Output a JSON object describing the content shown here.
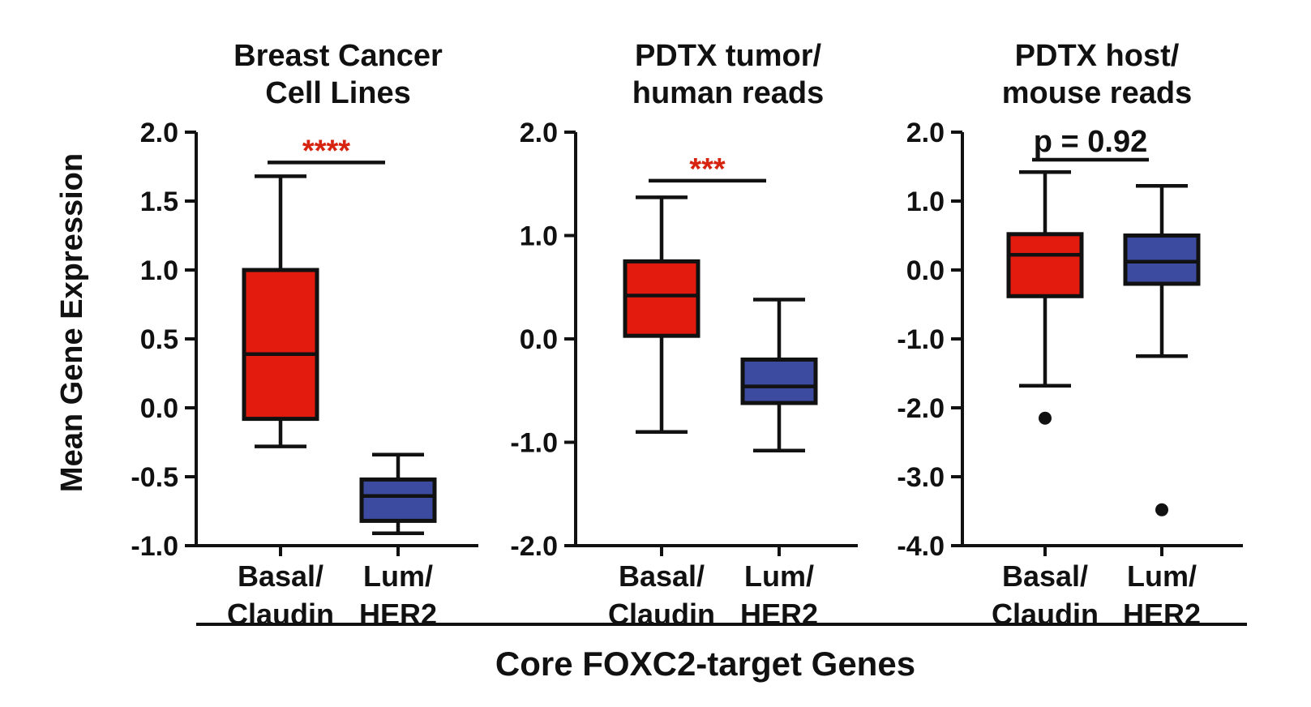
{
  "colors": {
    "basal": "#e31a0e",
    "lum": "#3c4ba0",
    "sig_star": "#d62410",
    "sig_text": "#111111"
  },
  "figure": {
    "ylabel": "Mean Gene Expression",
    "xlabel": "Core FOXC2-target Genes"
  },
  "chart_data": [
    {
      "type": "box",
      "title_lines": [
        "Breast Cancer",
        "Cell Lines"
      ],
      "ylim": [
        -1.0,
        2.0
      ],
      "yticks": [
        -1.0,
        -0.5,
        0.0,
        0.5,
        1.0,
        1.5,
        2.0
      ],
      "ytick_labels": [
        "-1.0",
        "-0.5",
        "0.0",
        "0.5",
        "1.0",
        "1.5",
        "2.0"
      ],
      "categories": [
        [
          "Basal/",
          "Claudin"
        ],
        [
          "Lum/",
          "HER2"
        ]
      ],
      "boxes": [
        {
          "min": -0.28,
          "q1": -0.08,
          "median": 0.39,
          "q3": 1.0,
          "max": 1.68,
          "outliers": [],
          "color": "basal"
        },
        {
          "min": -0.91,
          "q1": -0.82,
          "median": -0.64,
          "q3": -0.52,
          "max": -0.34,
          "outliers": [],
          "color": "lum"
        }
      ],
      "significance": {
        "label": "****",
        "y": 1.78,
        "style": "star"
      }
    },
    {
      "type": "box",
      "title_lines": [
        "PDTX tumor/",
        "human reads"
      ],
      "ylim": [
        -2.0,
        2.0
      ],
      "yticks": [
        -2.0,
        -1.0,
        0.0,
        1.0,
        2.0
      ],
      "ytick_labels": [
        "-2.0",
        "-1.0",
        "0.0",
        "1.0",
        "2.0"
      ],
      "categories": [
        [
          "Basal/",
          "Claudin"
        ],
        [
          "Lum/",
          "HER2"
        ]
      ],
      "boxes": [
        {
          "min": -0.9,
          "q1": 0.03,
          "median": 0.42,
          "q3": 0.75,
          "max": 1.37,
          "outliers": [],
          "color": "basal"
        },
        {
          "min": -1.08,
          "q1": -0.62,
          "median": -0.46,
          "q3": -0.2,
          "max": 0.38,
          "outliers": [],
          "color": "lum"
        }
      ],
      "significance": {
        "label": "***",
        "y": 1.53,
        "style": "star"
      }
    },
    {
      "type": "box",
      "title_lines": [
        "PDTX host/",
        "mouse reads"
      ],
      "ylim": [
        -4.0,
        2.0
      ],
      "yticks": [
        -4.0,
        -3.0,
        -2.0,
        -1.0,
        0.0,
        1.0,
        2.0
      ],
      "ytick_labels": [
        "-4.0",
        "-3.0",
        "-2.0",
        "-1.0",
        "0.0",
        "1.0",
        "2.0"
      ],
      "categories": [
        [
          "Basal/",
          "Claudin"
        ],
        [
          "Lum/",
          "HER2"
        ]
      ],
      "boxes": [
        {
          "min": -1.68,
          "q1": -0.38,
          "median": 0.22,
          "q3": 0.52,
          "max": 1.42,
          "outliers": [
            -2.15
          ],
          "color": "basal"
        },
        {
          "min": -1.25,
          "q1": -0.2,
          "median": 0.12,
          "q3": 0.5,
          "max": 1.22,
          "outliers": [
            -3.48
          ],
          "color": "lum"
        }
      ],
      "significance": {
        "label": "p = 0.92",
        "y": 1.6,
        "style": "text"
      }
    }
  ]
}
